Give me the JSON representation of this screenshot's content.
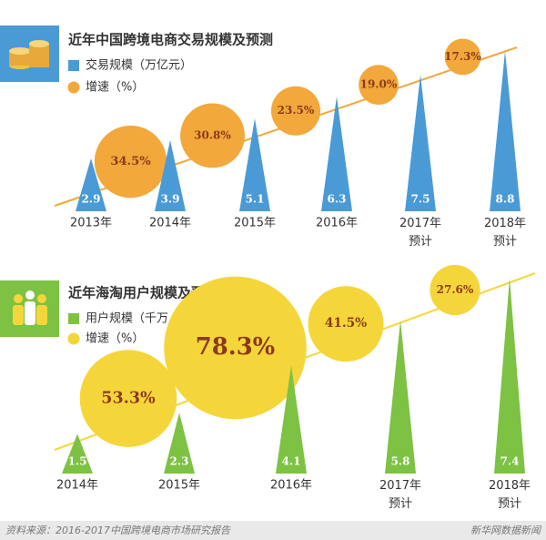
{
  "chart_data": [
    {
      "type": "bar",
      "title": "近年中国跨境电商交易规模及预测",
      "categories": [
        "2013年",
        "2014年",
        "2015年",
        "2016年",
        "2017年\n预计",
        "2018年\n预计"
      ],
      "series": [
        {
          "name": "交易规模（万亿元）",
          "color": "#4a9ad6",
          "kind": "triangle",
          "values": [
            2.9,
            3.9,
            5.1,
            6.3,
            7.5,
            8.8
          ]
        },
        {
          "name": "增速（%）",
          "color": "#f2a83a",
          "kind": "bubble",
          "values": [
            null,
            34.5,
            30.8,
            23.5,
            19.0,
            17.3
          ],
          "value_labels": [
            null,
            "34.5%",
            "30.8%",
            "23.5%",
            "19.0%",
            "17.3%"
          ]
        }
      ]
    },
    {
      "type": "bar",
      "title": "近年海淘用户规模及预测",
      "categories": [
        "2014年",
        "2015年",
        "2016年",
        "2017年\n预计",
        "2018年\n预计"
      ],
      "series": [
        {
          "name": "用户规模（千万人）",
          "color": "#7dc242",
          "kind": "triangle",
          "values": [
            1.5,
            2.3,
            4.1,
            5.8,
            7.4
          ]
        },
        {
          "name": "增速（%）",
          "color": "#f5d63a",
          "kind": "bubble",
          "values": [
            null,
            53.3,
            78.3,
            41.5,
            27.6
          ],
          "value_labels": [
            null,
            "53.3%",
            "78.3%",
            "41.5%",
            "27.6%"
          ]
        }
      ]
    }
  ],
  "footer": {
    "source": "资料来源：2016-2017中国跨境电商市场研究报告",
    "brand": "新华网数据新闻"
  }
}
